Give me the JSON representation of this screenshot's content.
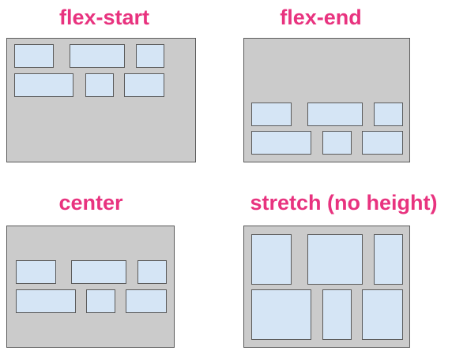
{
  "colors": {
    "title": "#e8337f",
    "container_bg": "#cbcbcb",
    "container_border": "#5a5a5a",
    "item_bg": "#d5e5f5",
    "item_border": "#5a5a5a"
  },
  "panels": [
    {
      "title": "flex-start"
    },
    {
      "title": "flex-end"
    },
    {
      "title": "center"
    },
    {
      "title": "stretch (no height)"
    }
  ]
}
